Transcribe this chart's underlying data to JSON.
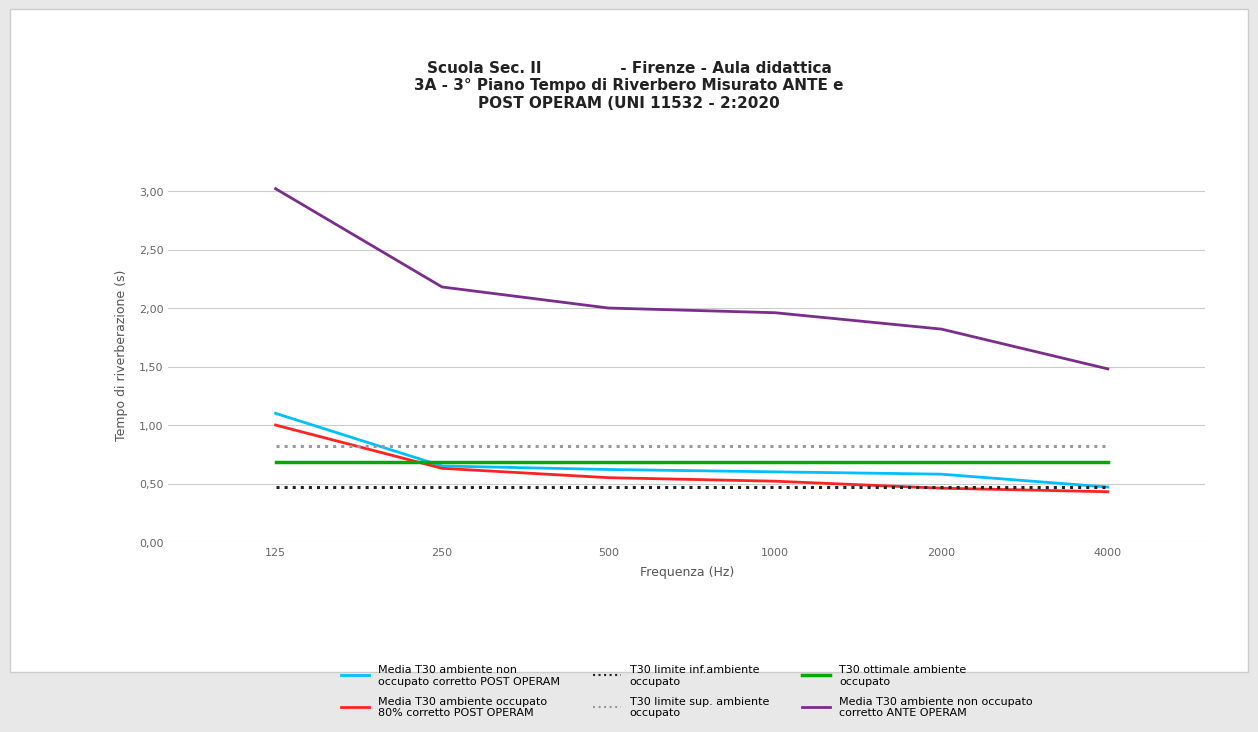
{
  "title_line1": "Scuola Sec. II               - Firenze - Aula didattica",
  "title_line2": "3A - 3° Piano Tempo di Riverbero Misurato ANTE e",
  "title_line3": "POST OPERAM (UNI 11532 - 2:2020",
  "xlabel": "Frequenza (Hz)",
  "ylabel": "Tempo di riverberazione (s)",
  "frequencies": [
    125,
    250,
    500,
    1000,
    2000,
    4000
  ],
  "x_labels": [
    "125",
    "250",
    "500",
    "1000",
    "2000",
    "4000"
  ],
  "ylim": [
    0.0,
    3.2
  ],
  "yticks": [
    0.0,
    0.5,
    1.0,
    1.5,
    2.0,
    2.5,
    3.0
  ],
  "ytick_labels": [
    "0,00",
    "0,50",
    "1,00",
    "1,50",
    "2,00",
    "2,50",
    "3,00"
  ],
  "series": {
    "media_non_occ_post": {
      "values": [
        1.1,
        0.65,
        0.62,
        0.6,
        0.58,
        0.47
      ],
      "color": "#00BFFF",
      "linestyle": "-",
      "linewidth": 2.0,
      "label_row": 0,
      "label_col": 0,
      "label": "Media T30 ambiente non\noccupato corretto POST OPERAM"
    },
    "media_occ_80_post": {
      "values": [
        1.0,
        0.63,
        0.55,
        0.52,
        0.46,
        0.43
      ],
      "color": "#FF2222",
      "linestyle": "-",
      "linewidth": 2.0,
      "label_row": 0,
      "label_col": 1,
      "label": "Media T30 ambiente occupato\n80% corretto POST OPERAM"
    },
    "t30_limite_inf": {
      "values": [
        0.47,
        0.47,
        0.47,
        0.47,
        0.47,
        0.47
      ],
      "color": "#222222",
      "linestyle": ":",
      "linewidth": 2.2,
      "label_row": 0,
      "label_col": 2,
      "label": "T30 limite inf.ambiente\noccupato"
    },
    "t30_limite_sup": {
      "values": [
        0.82,
        0.82,
        0.82,
        0.82,
        0.82,
        0.82
      ],
      "color": "#999999",
      "linestyle": ":",
      "linewidth": 2.2,
      "label_row": 1,
      "label_col": 0,
      "label": "T30 limite sup. ambiente\noccupato"
    },
    "t30_ottimale": {
      "values": [
        0.68,
        0.68,
        0.68,
        0.68,
        0.68,
        0.68
      ],
      "color": "#00AA00",
      "linestyle": "-",
      "linewidth": 2.5,
      "label_row": 1,
      "label_col": 1,
      "label": "T30 ottimale ambiente\noccupato"
    },
    "media_non_occ_ante": {
      "values": [
        3.02,
        2.18,
        2.0,
        1.96,
        1.82,
        1.48
      ],
      "color": "#7B2D8B",
      "linestyle": "-",
      "linewidth": 2.0,
      "label_row": 1,
      "label_col": 2,
      "label": "Media T30 ambiente non occupato\ncorretto ANTE OPERAM"
    }
  },
  "outer_bg_color": "#e8e8e8",
  "card_bg_color": "#ffffff",
  "plot_bg_color": "#ffffff",
  "grid_color": "#cccccc",
  "title_fontsize": 11,
  "axis_label_fontsize": 9,
  "tick_fontsize": 8,
  "legend_fontsize": 8
}
